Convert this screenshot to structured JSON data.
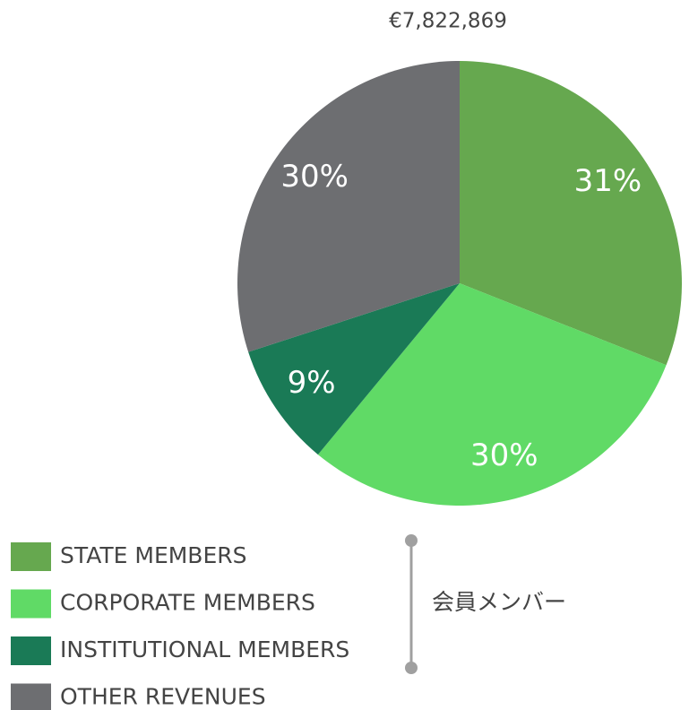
{
  "chart_data": {
    "type": "pie",
    "title": "€7,822,869",
    "categories": [
      "STATE MEMBERS",
      "CORPORATE MEMBERS",
      "INSTITUTIONAL MEMBERS",
      "OTHER REVENUES"
    ],
    "values": [
      31,
      30,
      9,
      30
    ],
    "value_labels": [
      "31%",
      "30%",
      "9%",
      "30%"
    ],
    "colors": [
      "#66a84f",
      "#60da66",
      "#1a7a56",
      "#6d6e71"
    ],
    "annotation": "会員メンバー"
  }
}
